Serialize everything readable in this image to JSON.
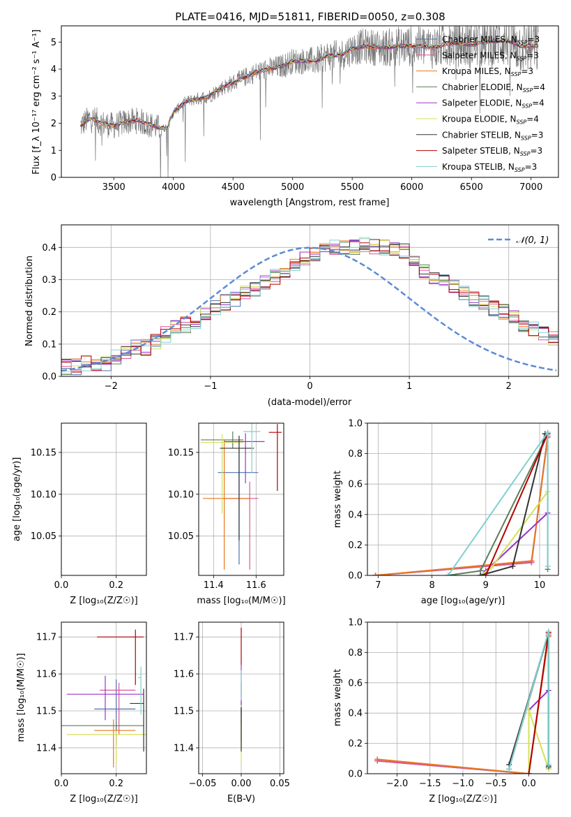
{
  "figure_title": "PLATE=0416, MJD=51811, FIBERID=0050, z=0.308",
  "colors": {
    "Chabrier MILES": "#4c72b0",
    "Salpeter MILES": "#dd5599",
    "Kroupa MILES": "#e8761e",
    "Chabrier ELODIE": "#5a7d5a",
    "Salpeter ELODIE": "#9932cc",
    "Kroupa ELODIE": "#d4e157",
    "Chabrier STELIB": "#333333",
    "Salpeter STELIB": "#b30000",
    "Kroupa STELIB": "#80d0d0",
    "normal": "#5b8bd6",
    "spectrum": "#777777"
  },
  "chart_data": [
    {
      "id": "spectrum",
      "type": "line",
      "xlabel": "wavelength [Angstrom, rest frame]",
      "ylabel": "Flux [f_λ 10⁻¹⁷ erg cm⁻² s⁻¹ A⁻¹]",
      "xlim": [
        3060,
        7230
      ],
      "ylim": [
        0,
        5.6
      ],
      "xticks": [
        3500,
        4000,
        4500,
        5000,
        5500,
        6000,
        6500,
        7000
      ],
      "yticks": [
        0,
        1,
        2,
        3,
        4,
        5
      ],
      "legend_position": "upper-right",
      "legend": [
        {
          "label": "Chabrier MILES, N",
          "sub": "SSP",
          "suffix": "=3"
        },
        {
          "label": "Salpeter MILES, N",
          "sub": "SSP",
          "suffix": "=3"
        },
        {
          "label": "Kroupa MILES, N",
          "sub": "SSP",
          "suffix": "=3"
        },
        {
          "label": "Chabrier ELODIE, N",
          "sub": "SSP",
          "suffix": "=4"
        },
        {
          "label": "Salpeter ELODIE, N",
          "sub": "SSP",
          "suffix": "=4"
        },
        {
          "label": "Kroupa ELODIE, N",
          "sub": "SSP",
          "suffix": "=4"
        },
        {
          "label": "Chabrier STELIB, N",
          "sub": "SSP",
          "suffix": "=3"
        },
        {
          "label": "Salpeter STELIB, N",
          "sub": "SSP",
          "suffix": "=3"
        },
        {
          "label": "Kroupa STELIB, N",
          "sub": "SSP",
          "suffix": "=3"
        }
      ],
      "model_continuum": [
        [
          3220,
          1.9
        ],
        [
          3300,
          2.2
        ],
        [
          3400,
          2.0
        ],
        [
          3500,
          1.9
        ],
        [
          3600,
          2.05
        ],
        [
          3700,
          2.1
        ],
        [
          3800,
          1.95
        ],
        [
          3900,
          1.8
        ],
        [
          3950,
          1.85
        ],
        [
          4000,
          2.4
        ],
        [
          4100,
          2.8
        ],
        [
          4200,
          2.9
        ],
        [
          4300,
          3.0
        ],
        [
          4400,
          3.3
        ],
        [
          4500,
          3.5
        ],
        [
          4600,
          3.7
        ],
        [
          4700,
          3.9
        ],
        [
          4800,
          4.0
        ],
        [
          4900,
          4.1
        ],
        [
          5000,
          4.3
        ],
        [
          5100,
          4.3
        ],
        [
          5200,
          4.3
        ],
        [
          5300,
          4.5
        ],
        [
          5400,
          4.5
        ],
        [
          5500,
          4.75
        ],
        [
          5600,
          4.85
        ],
        [
          5700,
          4.8
        ],
        [
          5800,
          4.8
        ],
        [
          5900,
          4.85
        ],
        [
          6000,
          4.85
        ],
        [
          6100,
          4.85
        ],
        [
          6200,
          4.8
        ],
        [
          6300,
          4.95
        ],
        [
          6400,
          4.95
        ],
        [
          6500,
          4.9
        ],
        [
          6600,
          5.0
        ],
        [
          6700,
          5.05
        ],
        [
          6800,
          5.05
        ],
        [
          6900,
          4.85
        ],
        [
          7000,
          4.85
        ],
        [
          7060,
          4.85
        ]
      ]
    },
    {
      "id": "residuals",
      "type": "histogram",
      "xlabel": "(data-model)/error",
      "ylabel": "Normed distribution",
      "xlim": [
        -2.5,
        2.5
      ],
      "ylim": [
        0,
        0.47
      ],
      "xticks": [
        -2,
        -1,
        0,
        1,
        2
      ],
      "yticks": [
        0.0,
        0.1,
        0.2,
        0.3,
        0.4
      ],
      "bin_width": 0.1,
      "legend_position": "upper-right",
      "legend_label": "𝒩(0, 1)",
      "approx_bin_heights": [
        0.03,
        0.03,
        0.04,
        0.04,
        0.04,
        0.06,
        0.08,
        0.09,
        0.09,
        0.11,
        0.13,
        0.15,
        0.16,
        0.17,
        0.2,
        0.21,
        0.23,
        0.24,
        0.26,
        0.27,
        0.29,
        0.31,
        0.33,
        0.35,
        0.37,
        0.38,
        0.39,
        0.4,
        0.4,
        0.4,
        0.41,
        0.4,
        0.4,
        0.39,
        0.39,
        0.36,
        0.33,
        0.31,
        0.3,
        0.28,
        0.26,
        0.24,
        0.23,
        0.21,
        0.2,
        0.18,
        0.16,
        0.15,
        0.13,
        0.12,
        0.11,
        0.1,
        0.09,
        0.08,
        0.07,
        0.06,
        0.05,
        0.05,
        0.04,
        0.03
      ]
    },
    {
      "id": "age_vs_Z",
      "type": "scatter",
      "xlabel": "Z [log₁₀(Z/Z☉)]",
      "ylabel": "age  [log₁₀(age/yr)]",
      "xlim": [
        0,
        0.31
      ],
      "ylim": [
        10.003,
        10.185
      ],
      "xticks": [
        0.0,
        0.2
      ],
      "yticks": [
        10.05,
        10.1,
        10.15
      ],
      "points": [
        {
          "model": "Chabrier MILES",
          "x": 0.2,
          "y": 10.126,
          "xerr": [
            0.08,
            0.08
          ],
          "yerr": [
            0.03,
            0.03
          ]
        },
        {
          "model": "Salpeter MILES",
          "x": 0.26,
          "y": 10.13,
          "xerr": [
            0.03,
            0.03
          ],
          "yerr": [
            0.12,
            0.01
          ]
        },
        {
          "model": "Kroupa MILES",
          "x": 0.21,
          "y": 10.095,
          "xerr": [
            0.08,
            0.06
          ],
          "yerr": [
            0.085,
            0.02
          ]
        },
        {
          "model": "Chabrier ELODIE",
          "x": 0.22,
          "y": 10.163,
          "xerr": [
            0.19,
            0.08
          ],
          "yerr": [
            0.01,
            0.01
          ]
        },
        {
          "model": "Salpeter ELODIE",
          "x": 0.28,
          "y": 10.13,
          "xerr": [
            0.02,
            0.02
          ],
          "yerr": [
            0.04,
            0.04
          ]
        },
        {
          "model": "Kroupa ELODIE",
          "x": 0.2,
          "y": 10.162,
          "xerr": [
            0.19,
            0.1
          ],
          "yerr": [
            0.085,
            0.01
          ]
        },
        {
          "model": "Chabrier STELIB",
          "x": 0.3,
          "y": 10.155,
          "xerr": [
            0.06,
            0.0
          ],
          "yerr": [
            0.105,
            0.015
          ]
        },
        {
          "model": "Salpeter STELIB",
          "x": 0.27,
          "y": 10.174,
          "xerr": [
            0.14,
            0.03
          ],
          "yerr": [
            0.07,
            0.01
          ]
        },
        {
          "model": "Kroupa STELIB",
          "x": 0.3,
          "y": 10.17,
          "xerr": [
            0.01,
            0.0
          ],
          "yerr": [
            0.06,
            0.01
          ]
        }
      ]
    },
    {
      "id": "age_vs_mass",
      "type": "scatter",
      "xlabel": "mass [log₁₀(M/M☉)]",
      "xlim": [
        11.33,
        11.73
      ],
      "ylim": [
        10.003,
        10.185
      ],
      "xticks": [
        11.4,
        11.6
      ],
      "yticks": [
        10.05,
        10.1,
        10.15
      ],
      "points": [
        {
          "model": "Chabrier MILES",
          "x": 11.52,
          "y": 10.126,
          "xerr": [
            0.1,
            0.09
          ],
          "yerr": [
            0.11,
            0.04
          ]
        },
        {
          "model": "Salpeter MILES",
          "x": 11.57,
          "y": 10.095,
          "xerr": [
            0.13,
            0.04
          ],
          "yerr": [
            0.085,
            0.02
          ]
        },
        {
          "model": "Kroupa MILES",
          "x": 11.45,
          "y": 10.095,
          "xerr": [
            0.1,
            0.12
          ],
          "yerr": [
            0.085,
            0.07
          ]
        },
        {
          "model": "Chabrier ELODIE",
          "x": 11.49,
          "y": 10.165,
          "xerr": [
            0.15,
            0.05
          ],
          "yerr": [
            0.01,
            0.01
          ]
        },
        {
          "model": "Salpeter ELODIE",
          "x": 11.55,
          "y": 10.163,
          "xerr": [
            0.1,
            0.09
          ],
          "yerr": [
            0.05,
            0.01
          ]
        },
        {
          "model": "Kroupa ELODIE",
          "x": 11.44,
          "y": 10.162,
          "xerr": [
            0.1,
            0.1
          ],
          "yerr": [
            0.085,
            0.01
          ]
        },
        {
          "model": "Chabrier STELIB",
          "x": 11.52,
          "y": 10.155,
          "xerr": [
            0.09,
            0.07
          ],
          "yerr": [
            0.11,
            0.015
          ]
        },
        {
          "model": "Salpeter STELIB",
          "x": 11.7,
          "y": 10.174,
          "xerr": [
            0.04,
            0.02
          ],
          "yerr": [
            0.07,
            0.01
          ]
        },
        {
          "model": "Kroupa STELIB",
          "x": 11.58,
          "y": 10.175,
          "xerr": [
            0.04,
            0.04
          ],
          "yerr": [
            0.05,
            0.01
          ]
        }
      ]
    },
    {
      "id": "mass_weight_vs_age",
      "type": "line",
      "xlabel": "age  [log₁₀(age/yr)]",
      "ylabel": "mass weight",
      "xlim": [
        6.8,
        10.35
      ],
      "ylim": [
        0,
        1.0
      ],
      "xticks": [
        7,
        8,
        9,
        10
      ],
      "yticks": [
        0.0,
        0.2,
        0.4,
        0.6,
        0.8,
        1.0
      ],
      "series": [
        {
          "model": "Chabrier MILES",
          "x": [
            6.95,
            9.85,
            10.15
          ],
          "y": [
            0.0,
            0.085,
            0.915
          ]
        },
        {
          "model": "Salpeter MILES",
          "x": [
            6.95,
            9.85,
            10.15
          ],
          "y": [
            0.0,
            0.085,
            0.915
          ]
        },
        {
          "model": "Kroupa MILES",
          "x": [
            6.95,
            9.85,
            10.15
          ],
          "y": [
            0.0,
            0.095,
            0.905
          ]
        },
        {
          "model": "Chabrier ELODIE",
          "x": [
            8.3,
            8.9,
            10.15,
            10.15
          ],
          "y": [
            0.0,
            0.03,
            0.93,
            0.04
          ]
        },
        {
          "model": "Salpeter ELODIE",
          "x": [
            8.9,
            9.0,
            10.15
          ],
          "y": [
            0.0,
            0.03,
            0.41
          ]
        },
        {
          "model": "Kroupa ELODIE",
          "x": [
            8.9,
            9.1,
            10.15
          ],
          "y": [
            0.0,
            0.05,
            0.55
          ]
        },
        {
          "model": "Chabrier STELIB",
          "x": [
            8.9,
            9.5,
            10.1
          ],
          "y": [
            0.0,
            0.06,
            0.93
          ]
        },
        {
          "model": "Salpeter STELIB",
          "x": [
            9.0,
            10.15
          ],
          "y": [
            0.0,
            0.93
          ]
        },
        {
          "model": "Kroupa STELIB",
          "x": [
            8.3,
            10.15,
            10.15
          ],
          "y": [
            0.0,
            0.94,
            0.06
          ]
        }
      ]
    },
    {
      "id": "mass_vs_Z",
      "type": "scatter",
      "xlabel": "Z [log₁₀(Z/Z☉)]",
      "ylabel": "mass [log₁₀(M/M☉)]",
      "xlim": [
        0,
        0.31
      ],
      "ylim": [
        11.33,
        11.74
      ],
      "xticks": [
        0.0,
        0.2
      ],
      "yticks": [
        11.4,
        11.5,
        11.6,
        11.7
      ],
      "points": [
        {
          "model": "Chabrier MILES",
          "x": 0.2,
          "y": 11.505,
          "xerr": [
            0.08,
            0.07
          ],
          "yerr": [
            0.1,
            0.08
          ]
        },
        {
          "model": "Salpeter MILES",
          "x": 0.21,
          "y": 11.556,
          "xerr": [
            0.07,
            0.06
          ],
          "yerr": [
            0.12,
            0.02
          ]
        },
        {
          "model": "Kroupa MILES",
          "x": 0.19,
          "y": 11.447,
          "xerr": [
            0.07,
            0.08
          ],
          "yerr": [
            0.1,
            0.03
          ]
        },
        {
          "model": "Chabrier ELODIE",
          "x": 0.2,
          "y": 11.46,
          "xerr": [
            0.2,
            0.1
          ],
          "yerr": [
            0.01,
            0.01
          ]
        },
        {
          "model": "Salpeter ELODIE",
          "x": 0.16,
          "y": 11.545,
          "xerr": [
            0.14,
            0.14
          ],
          "yerr": [
            0.07,
            0.05
          ]
        },
        {
          "model": "Kroupa ELODIE",
          "x": 0.2,
          "y": 11.436,
          "xerr": [
            0.18,
            0.11
          ],
          "yerr": [
            0.08,
            0.01
          ]
        },
        {
          "model": "Chabrier STELIB",
          "x": 0.3,
          "y": 11.52,
          "xerr": [
            0.05,
            0.0
          ],
          "yerr": [
            0.13,
            0.04
          ]
        },
        {
          "model": "Salpeter STELIB",
          "x": 0.27,
          "y": 11.7,
          "xerr": [
            0.14,
            0.03
          ],
          "yerr": [
            0.13,
            0.02
          ]
        },
        {
          "model": "Kroupa STELIB",
          "x": 0.29,
          "y": 11.59,
          "xerr": [
            0.01,
            0.0
          ],
          "yerr": [
            0.1,
            0.03
          ]
        }
      ]
    },
    {
      "id": "mass_vs_ebv",
      "type": "scatter",
      "xlabel": "E(B-V)",
      "xlim": [
        -0.055,
        0.055
      ],
      "ylim": [
        11.33,
        11.74
      ],
      "xticks": [
        -0.05,
        0.0,
        0.05
      ],
      "yticks": [
        11.4,
        11.5,
        11.6,
        11.7
      ],
      "points": [
        {
          "model": "Chabrier MILES",
          "x": 0.0,
          "y": 11.505,
          "yerr": [
            0.02,
            0.02
          ]
        },
        {
          "model": "Salpeter MILES",
          "x": 0.0,
          "y": 11.556,
          "yerr": [
            0.02,
            0.02
          ]
        },
        {
          "model": "Kroupa MILES",
          "x": 0.0,
          "y": 11.447,
          "yerr": [
            0.03,
            0.03
          ]
        },
        {
          "model": "Chabrier ELODIE",
          "x": 0.0,
          "y": 11.46,
          "yerr": [
            0.06,
            0.06
          ]
        },
        {
          "model": "Salpeter ELODIE",
          "x": 0.0,
          "y": 11.545,
          "yerr": [
            0.08,
            0.08
          ]
        },
        {
          "model": "Kroupa ELODIE",
          "x": 0.0,
          "y": 11.436,
          "yerr": [
            0.08,
            0.08
          ]
        },
        {
          "model": "Chabrier STELIB",
          "x": 0.0,
          "y": 11.45,
          "yerr": [
            0.06,
            0.06
          ]
        },
        {
          "model": "Salpeter STELIB",
          "x": 0.0,
          "y": 11.675,
          "yerr": [
            0.05,
            0.05
          ]
        },
        {
          "model": "Kroupa STELIB",
          "x": 0.0,
          "y": 11.57,
          "yerr": [
            0.04,
            0.04
          ]
        }
      ]
    },
    {
      "id": "mass_weight_vs_Z",
      "type": "line",
      "xlabel": "Z [log₁₀(Z/Z☉)]",
      "ylabel": "mass weight",
      "xlim": [
        -2.45,
        0.45
      ],
      "ylim": [
        0,
        1.0
      ],
      "xticks": [
        -2.0,
        -1.5,
        -1.0,
        -0.5,
        0.0
      ],
      "yticks": [
        0.0,
        0.2,
        0.4,
        0.6,
        0.8,
        1.0
      ],
      "series": [
        {
          "model": "Chabrier MILES",
          "x": [
            -2.3,
            0.0,
            0.3
          ],
          "y": [
            0.085,
            0.0,
            0.915
          ]
        },
        {
          "model": "Salpeter MILES",
          "x": [
            -2.3,
            0.0,
            0.3
          ],
          "y": [
            0.085,
            0.0,
            0.915
          ]
        },
        {
          "model": "Kroupa MILES",
          "x": [
            -2.3,
            0.0,
            0.3
          ],
          "y": [
            0.095,
            0.0,
            0.905
          ]
        },
        {
          "model": "Chabrier ELODIE",
          "x": [
            -0.3,
            0.3,
            0.3
          ],
          "y": [
            0.03,
            0.93,
            0.04
          ]
        },
        {
          "model": "Salpeter ELODIE",
          "x": [
            0.0,
            0.0,
            0.3
          ],
          "y": [
            0.0,
            0.42,
            0.55
          ]
        },
        {
          "model": "Kroupa ELODIE",
          "x": [
            0.0,
            0.0,
            0.3
          ],
          "y": [
            0.0,
            0.42,
            0.03
          ]
        },
        {
          "model": "Chabrier STELIB",
          "x": [
            -0.3,
            0.3,
            0.3
          ],
          "y": [
            0.06,
            0.93,
            0.05
          ]
        },
        {
          "model": "Salpeter STELIB",
          "x": [
            0.0,
            0.3
          ],
          "y": [
            0.0,
            0.93
          ]
        },
        {
          "model": "Kroupa STELIB",
          "x": [
            -0.3,
            0.3,
            0.3
          ],
          "y": [
            0.03,
            0.94,
            0.06
          ]
        }
      ]
    }
  ]
}
